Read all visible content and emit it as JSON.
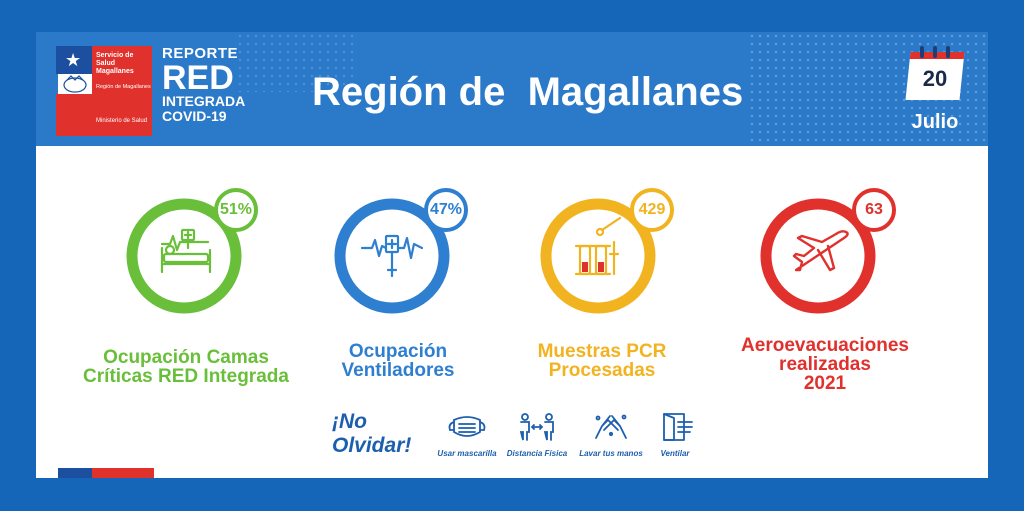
{
  "header": {
    "logo": {
      "line1": "Servicio de Salud Magallanes",
      "line2": "Región de Magallanes",
      "line3": "Ministerio de Salud"
    },
    "reporte": {
      "line1": "REPORTE",
      "line2": "RED",
      "line3": "INTEGRADA",
      "line4": "COVID-19"
    },
    "title": "Región de  Magallanes",
    "calendar": {
      "day": "20",
      "month": "Julio"
    }
  },
  "metrics": [
    {
      "value": "51%",
      "label_line1": "Ocupación Camas",
      "label_line2": "Críticas RED Integrada",
      "color": "#6abf3a",
      "icon": "hospital-bed-icon"
    },
    {
      "value": "47%",
      "label_line1": "Ocupación",
      "label_line2": "Ventiladores",
      "color": "#2f7fd0",
      "icon": "ventilator-icon"
    },
    {
      "value": "429",
      "label_line1": "Muestras PCR",
      "label_line2": "Procesadas",
      "color": "#f2b320",
      "icon": "test-tubes-icon"
    },
    {
      "value": "63",
      "label_line1": "Aeroevacuaciones",
      "label_line2": "realizadas",
      "label_line3": "2021",
      "color": "#e0312d",
      "icon": "airplane-icon"
    }
  ],
  "reminder": {
    "heading_line1": "¡No",
    "heading_line2": "Olvidar!",
    "items": [
      {
        "label": "Usar mascarilla",
        "icon": "mask-icon"
      },
      {
        "label": "Distancia Física",
        "icon": "distance-icon"
      },
      {
        "label": "Lavar tus manos",
        "icon": "hand-wash-icon"
      },
      {
        "label": "Ventilar",
        "icon": "window-icon"
      }
    ]
  },
  "colors": {
    "background": "#1565b8",
    "header": "#2b79c9",
    "flag_blue": "#1c4fa0",
    "flag_red": "#e0312d",
    "reminder_text": "#1c5fae"
  }
}
